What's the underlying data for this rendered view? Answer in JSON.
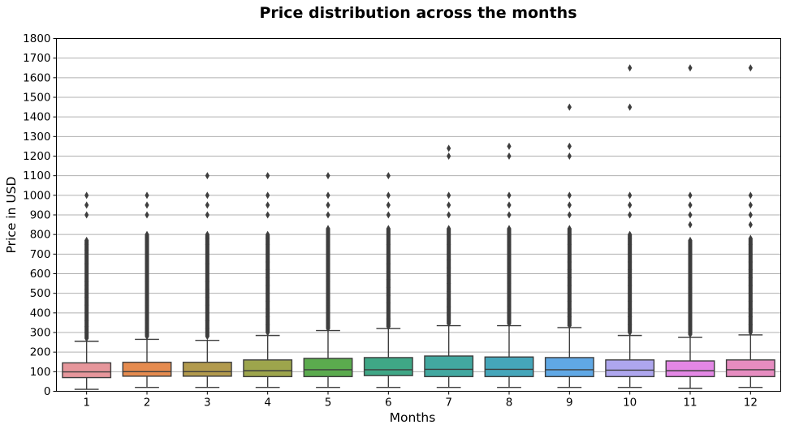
{
  "chart_data": {
    "type": "box",
    "title": "Price distribution across the months",
    "xlabel": "Months",
    "ylabel": "Price in USD",
    "ylim": [
      0,
      1800
    ],
    "y_ticks": [
      0,
      100,
      200,
      300,
      400,
      500,
      600,
      700,
      800,
      900,
      1000,
      1100,
      1200,
      1300,
      1400,
      1500,
      1600,
      1700,
      1800
    ],
    "grid": "horizontal",
    "categories": [
      "1",
      "2",
      "3",
      "4",
      "5",
      "6",
      "7",
      "8",
      "9",
      "10",
      "11",
      "12"
    ],
    "colors": [
      "#e6969b",
      "#e58b4f",
      "#b29a4d",
      "#9da54c",
      "#5bab4e",
      "#3fa786",
      "#42a8a0",
      "#45a6ba",
      "#60a8e5",
      "#aea6ee",
      "#e387e5",
      "#e68cc0"
    ],
    "boxes": [
      {
        "category": "1",
        "whisker_low": 10,
        "q1": 70,
        "median": 99,
        "q3": 145,
        "whisker_high": 255,
        "outliers": [
          270,
          300,
          330,
          360,
          400,
          440,
          480,
          500,
          520,
          540,
          560,
          600,
          650,
          700,
          720,
          750,
          770,
          900,
          950,
          1000
        ]
      },
      {
        "category": "2",
        "whisker_low": 20,
        "q1": 77,
        "median": 100,
        "q3": 148,
        "whisker_high": 265,
        "outliers": [
          280,
          320,
          360,
          400,
          440,
          480,
          520,
          560,
          600,
          650,
          700,
          750,
          780,
          800,
          900,
          950,
          1000
        ]
      },
      {
        "category": "3",
        "whisker_low": 20,
        "q1": 77,
        "median": 100,
        "q3": 148,
        "whisker_high": 260,
        "outliers": [
          280,
          320,
          360,
          400,
          440,
          480,
          520,
          560,
          600,
          650,
          700,
          750,
          780,
          800,
          900,
          950,
          1000,
          1100
        ]
      },
      {
        "category": "4",
        "whisker_low": 20,
        "q1": 75,
        "median": 105,
        "q3": 160,
        "whisker_high": 285,
        "outliers": [
          300,
          340,
          380,
          420,
          460,
          500,
          540,
          580,
          620,
          660,
          700,
          750,
          780,
          800,
          900,
          950,
          1000,
          1100
        ]
      },
      {
        "category": "5",
        "whisker_low": 20,
        "q1": 75,
        "median": 110,
        "q3": 168,
        "whisker_high": 310,
        "outliers": [
          320,
          360,
          400,
          440,
          480,
          520,
          560,
          600,
          650,
          700,
          750,
          800,
          830,
          900,
          950,
          1000,
          1100
        ]
      },
      {
        "category": "6",
        "whisker_low": 20,
        "q1": 80,
        "median": 110,
        "q3": 172,
        "whisker_high": 320,
        "outliers": [
          330,
          370,
          410,
          450,
          490,
          530,
          570,
          610,
          650,
          700,
          750,
          800,
          830,
          900,
          950,
          1000,
          1100
        ]
      },
      {
        "category": "7",
        "whisker_low": 20,
        "q1": 75,
        "median": 112,
        "q3": 180,
        "whisker_high": 335,
        "outliers": [
          345,
          390,
          430,
          470,
          510,
          550,
          590,
          630,
          670,
          700,
          750,
          800,
          830,
          900,
          950,
          1000,
          1200,
          1240
        ]
      },
      {
        "category": "8",
        "whisker_low": 20,
        "q1": 75,
        "median": 112,
        "q3": 175,
        "whisker_high": 335,
        "outliers": [
          345,
          390,
          430,
          470,
          510,
          550,
          590,
          630,
          670,
          700,
          750,
          800,
          830,
          900,
          950,
          1000,
          1200,
          1250
        ]
      },
      {
        "category": "9",
        "whisker_low": 20,
        "q1": 75,
        "median": 110,
        "q3": 172,
        "whisker_high": 325,
        "outliers": [
          335,
          380,
          420,
          460,
          500,
          540,
          580,
          620,
          660,
          700,
          750,
          800,
          830,
          900,
          950,
          1000,
          1200,
          1250,
          1450
        ]
      },
      {
        "category": "10",
        "whisker_low": 20,
        "q1": 75,
        "median": 108,
        "q3": 160,
        "whisker_high": 285,
        "outliers": [
          300,
          340,
          380,
          420,
          460,
          500,
          540,
          580,
          620,
          660,
          700,
          750,
          780,
          800,
          900,
          950,
          1000,
          1450,
          1650
        ]
      },
      {
        "category": "11",
        "whisker_low": 15,
        "q1": 75,
        "median": 105,
        "q3": 155,
        "whisker_high": 275,
        "outliers": [
          290,
          330,
          370,
          410,
          450,
          490,
          530,
          570,
          610,
          650,
          700,
          750,
          770,
          850,
          900,
          950,
          1000,
          1650
        ]
      },
      {
        "category": "12",
        "whisker_low": 20,
        "q1": 75,
        "median": 110,
        "q3": 160,
        "whisker_high": 288,
        "outliers": [
          300,
          340,
          380,
          420,
          460,
          500,
          540,
          580,
          620,
          660,
          700,
          750,
          780,
          850,
          900,
          950,
          1000,
          1650
        ]
      }
    ]
  }
}
